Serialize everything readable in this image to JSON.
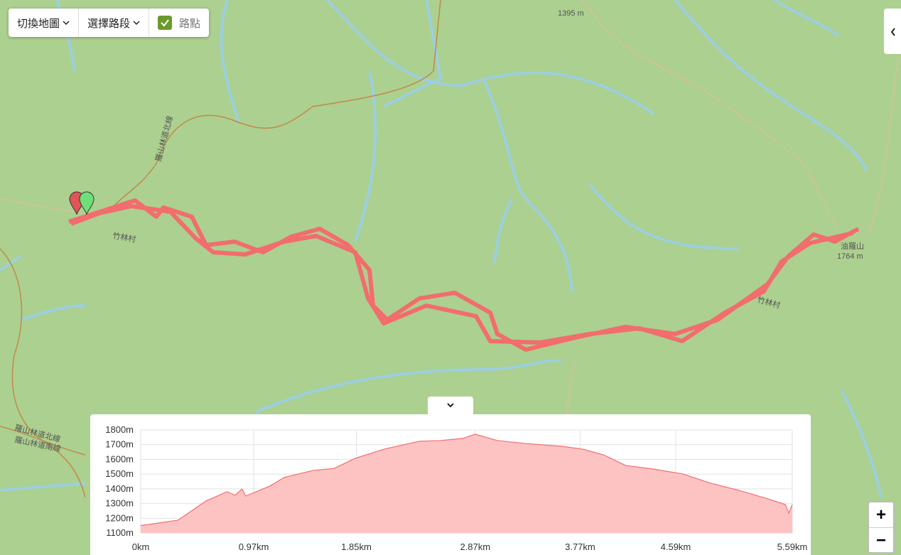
{
  "controls": {
    "switch_map": "切換地圖",
    "select_segment": "選擇路段",
    "waypoints": "路點",
    "zoom_in": "+",
    "zoom_out": "−"
  },
  "map_labels": {
    "peak_1395": "1395 m",
    "peak_name": "油羅山",
    "peak_1764": "1764 m",
    "village_1": "竹林村",
    "village_2": "竹林村",
    "road_1": "羅山林道北線",
    "road_2": "羅山林道南線",
    "road_3": "羅山林道北線"
  },
  "chart_data": {
    "type": "area",
    "color": "#f26d6d",
    "fill": "#fdc3c3",
    "grid": true,
    "x": [
      0,
      0.32,
      0.47,
      0.56,
      0.74,
      0.81,
      0.87,
      0.9,
      1.11,
      1.23,
      1.48,
      1.66,
      1.84,
      2.09,
      2.39,
      2.57,
      2.76,
      2.87,
      3.06,
      3.3,
      3.61,
      3.79,
      3.97,
      4.16,
      4.4,
      4.65,
      4.89,
      5.13,
      5.38,
      5.53,
      5.56,
      5.59
    ],
    "values": [
      1150,
      1187,
      1269,
      1317,
      1380,
      1356,
      1399,
      1351,
      1419,
      1477,
      1525,
      1539,
      1607,
      1670,
      1723,
      1728,
      1742,
      1771,
      1728,
      1708,
      1689,
      1670,
      1631,
      1559,
      1534,
      1501,
      1438,
      1390,
      1332,
      1293,
      1235,
      1293
    ],
    "xlim": [
      0,
      5.59
    ],
    "xticks": [
      {
        "value": 0,
        "label": "0km"
      },
      {
        "value": 0.97,
        "label": "0.97km"
      },
      {
        "value": 1.85,
        "label": "1.85km"
      },
      {
        "value": 2.87,
        "label": "2.87km"
      },
      {
        "value": 3.77,
        "label": "3.77km"
      },
      {
        "value": 4.59,
        "label": "4.59km"
      },
      {
        "value": 5.59,
        "label": "5.59km"
      }
    ],
    "ylim": [
      1100,
      1800
    ],
    "yticks": [
      {
        "value": 1100,
        "label": "1100m"
      },
      {
        "value": 1200,
        "label": "1200m"
      },
      {
        "value": 1300,
        "label": "1300m"
      },
      {
        "value": 1400,
        "label": "1400m"
      },
      {
        "value": 1500,
        "label": "1500m"
      },
      {
        "value": 1600,
        "label": "1600m"
      },
      {
        "value": 1700,
        "label": "1700m"
      },
      {
        "value": 1800,
        "label": "1800m"
      }
    ]
  }
}
